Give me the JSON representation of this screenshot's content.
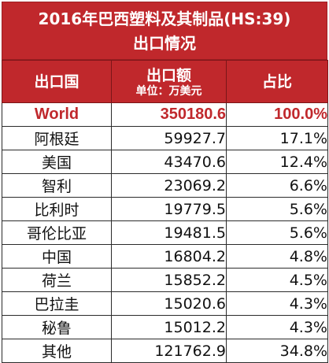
{
  "title": {
    "line1": "2016年巴西塑料及其制品(HS:39)",
    "line2": "出口情况"
  },
  "headers": {
    "country": "出口国",
    "amount": "出口额",
    "amount_unit": "单位：万美元",
    "share": "占比"
  },
  "rows": [
    {
      "country": "World",
      "value": "350180.6",
      "share": "100.0%"
    },
    {
      "country": "阿根廷",
      "value": "59927.7",
      "share": "17.1%"
    },
    {
      "country": "美国",
      "value": "43470.6",
      "share": "12.4%"
    },
    {
      "country": "智利",
      "value": "23069.2",
      "share": "6.6%"
    },
    {
      "country": "比利时",
      "value": "19779.5",
      "share": "5.6%"
    },
    {
      "country": "哥伦比亚",
      "value": "19481.5",
      "share": "5.6%"
    },
    {
      "country": "中国",
      "value": "16804.2",
      "share": "4.8%"
    },
    {
      "country": "荷兰",
      "value": "15852.2",
      "share": "4.5%"
    },
    {
      "country": "巴拉圭",
      "value": "15020.6",
      "share": "4.3%"
    },
    {
      "country": "秘鲁",
      "value": "15012.2",
      "share": "4.3%"
    },
    {
      "country": "其他",
      "value": "121762.9",
      "share": "34.8%"
    }
  ],
  "colors": {
    "header_bg": "#c0282c",
    "header_text": "#ffffff",
    "highlight_text": "#c0282c"
  }
}
